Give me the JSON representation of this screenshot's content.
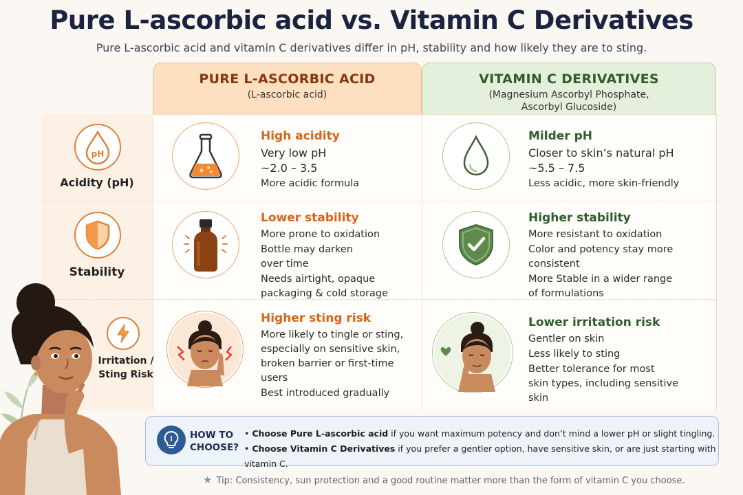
{
  "title": "Pure L-ascorbic acid vs. Vitamin C Derivatives",
  "subtitle": "Pure L-ascorbic acid and vitamin C derivatives differ in pH, stability and how likely they are to sting.",
  "columns": {
    "pure": {
      "heading": "PURE L-ASCORBIC ACID",
      "sub": "(L-ascorbic acid)"
    },
    "deriv": {
      "heading": "VITAMIN C DERIVATIVES",
      "sub1": "(Magnesium Ascorbyl Phosphate,",
      "sub2": "Ascorbyl Glucoside)"
    }
  },
  "rows": {
    "acidity": {
      "label": "Acidity (pH)",
      "icon_text": "pH",
      "pure": {
        "title": "High acidity",
        "l1": "Very low pH",
        "l2": "~2.0 – 3.5",
        "l3": "More acidic formula"
      },
      "deriv": {
        "title": "Milder pH",
        "l1": "Closer to skin’s natural pH",
        "l2": "~5.5 – 7.5",
        "l3": "Less acidic, more skin-friendly"
      }
    },
    "stability": {
      "label": "Stability",
      "pure": {
        "title": "Lower stability",
        "l1": "More prone to oxidation",
        "l2a": "Bottle may darken",
        "l2b": "over time",
        "l3a": "Needs airtight, opaque",
        "l3b": "packaging & cold storage"
      },
      "deriv": {
        "title": "Higher stability",
        "l1": "More resistant to oxidation",
        "l2a": "Color and potency stay more",
        "l2b": "consistent",
        "l3a": "More Stable in a wider range",
        "l3b": "of formulations"
      }
    },
    "irritation": {
      "label1": "Irritation /",
      "label2": "Sting Risk",
      "pure": {
        "title": "Higher sting risk",
        "l1a": "More likely to tingle or sting,",
        "l1b": "especially on sensitive skin,",
        "l1c": "broken barrier or first-time",
        "l1d": "users",
        "l2": "Best introduced gradually"
      },
      "deriv": {
        "title": "Lower irritation risk",
        "l1": "Gentler on skin",
        "l2": "Less likely to sting",
        "l3a": "Better tolerance for most",
        "l3b": "skin types, including sensitive",
        "l3c": "skin"
      }
    }
  },
  "choose": {
    "title1": "HOW TO",
    "title2": "CHOOSE?",
    "b1_bold": "Choose Pure L-ascorbic acid",
    "b1_rest": " if you want maximum potency and don’t mind a lower pH or slight tingling.",
    "b2_bold": "Choose Vitamin C Derivatives",
    "b2_rest": " if you prefer a gentler option, have sensitive skin, or are just starting with vitamin C."
  },
  "tip": "Tip: Consistency, sun protection and a good routine matter more than the form of vitamin C you choose.",
  "colors": {
    "orange": "#e2803a",
    "green": "#2f5d2c",
    "navy": "#1c2340",
    "blue": "#2f5b93"
  },
  "icons": [
    "ph-drop-icon",
    "shield-icon",
    "lightning-icon",
    "flask-icon",
    "drop-icon",
    "bottle-icon",
    "check-shield-icon",
    "stinging-face-icon",
    "calm-face-icon",
    "lightbulb-icon",
    "star-icon",
    "woman-illustration"
  ]
}
